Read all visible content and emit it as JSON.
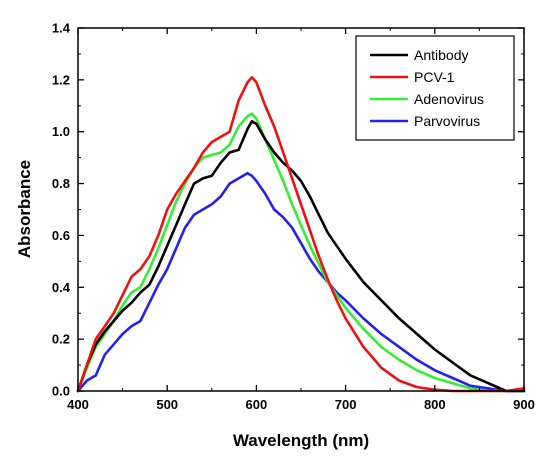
{
  "chart_data": {
    "type": "line",
    "title": "",
    "xlabel": "Wavelength (nm)",
    "ylabel": "Absorbance",
    "xlim": [
      400,
      900
    ],
    "ylim": [
      0.0,
      1.4
    ],
    "xticks": [
      400,
      500,
      600,
      700,
      800,
      900
    ],
    "xtick_labels": [
      "400",
      "500",
      "600",
      "700",
      "800",
      "900"
    ],
    "yticks": [
      0.0,
      0.2,
      0.4,
      0.6,
      0.8,
      1.0,
      1.2,
      1.4
    ],
    "ytick_labels": [
      "0.0",
      "0.2",
      "0.4",
      "0.6",
      "0.8",
      "1.0",
      "1.2",
      "1.4"
    ],
    "grid": false,
    "legend_position": "top-right",
    "series": [
      {
        "name": "Antibody",
        "color": "#000000",
        "x": [
          400,
          410,
          420,
          430,
          440,
          450,
          460,
          470,
          480,
          490,
          500,
          510,
          520,
          530,
          540,
          550,
          560,
          570,
          580,
          590,
          595,
          600,
          610,
          620,
          630,
          640,
          650,
          660,
          670,
          680,
          690,
          700,
          720,
          740,
          760,
          780,
          800,
          820,
          840,
          860,
          880,
          900
        ],
        "y": [
          0.0,
          0.1,
          0.18,
          0.23,
          0.27,
          0.31,
          0.34,
          0.38,
          0.41,
          0.48,
          0.56,
          0.64,
          0.72,
          0.8,
          0.82,
          0.83,
          0.88,
          0.92,
          0.93,
          1.01,
          1.04,
          1.03,
          0.97,
          0.92,
          0.88,
          0.85,
          0.81,
          0.75,
          0.68,
          0.61,
          0.56,
          0.51,
          0.42,
          0.35,
          0.28,
          0.22,
          0.16,
          0.11,
          0.06,
          0.03,
          0.0,
          0.0
        ]
      },
      {
        "name": "PCV-1",
        "color": "#ee1111",
        "x": [
          400,
          410,
          420,
          430,
          440,
          450,
          460,
          470,
          480,
          490,
          500,
          510,
          520,
          530,
          540,
          550,
          560,
          570,
          580,
          590,
          595,
          600,
          610,
          620,
          630,
          640,
          650,
          660,
          670,
          680,
          690,
          700,
          720,
          740,
          760,
          780,
          800,
          820,
          840,
          860,
          880,
          900
        ],
        "y": [
          0.0,
          0.1,
          0.2,
          0.25,
          0.3,
          0.37,
          0.44,
          0.47,
          0.52,
          0.6,
          0.7,
          0.76,
          0.81,
          0.86,
          0.92,
          0.96,
          0.98,
          1.0,
          1.12,
          1.19,
          1.21,
          1.19,
          1.1,
          1.02,
          0.92,
          0.82,
          0.72,
          0.62,
          0.52,
          0.43,
          0.35,
          0.28,
          0.17,
          0.09,
          0.04,
          0.015,
          0.005,
          0.0,
          0.0,
          0.0,
          0.0,
          0.01
        ]
      },
      {
        "name": "Adenovirus",
        "color": "#33ee33",
        "x": [
          400,
          410,
          420,
          430,
          440,
          450,
          460,
          470,
          480,
          490,
          500,
          510,
          520,
          530,
          540,
          550,
          560,
          570,
          580,
          590,
          595,
          600,
          610,
          620,
          630,
          640,
          650,
          660,
          670,
          680,
          690,
          700,
          720,
          740,
          760,
          780,
          800,
          820,
          840,
          860,
          880,
          900
        ],
        "y": [
          0.0,
          0.09,
          0.17,
          0.22,
          0.27,
          0.33,
          0.38,
          0.4,
          0.47,
          0.55,
          0.64,
          0.73,
          0.8,
          0.86,
          0.9,
          0.91,
          0.92,
          0.95,
          1.02,
          1.06,
          1.07,
          1.05,
          0.97,
          0.89,
          0.81,
          0.72,
          0.64,
          0.56,
          0.49,
          0.42,
          0.37,
          0.32,
          0.24,
          0.17,
          0.12,
          0.08,
          0.05,
          0.03,
          0.01,
          0.0,
          0.0,
          0.0
        ]
      },
      {
        "name": "Parvovirus",
        "color": "#2222ee",
        "x": [
          400,
          410,
          420,
          430,
          440,
          450,
          460,
          470,
          480,
          490,
          500,
          510,
          520,
          530,
          540,
          550,
          560,
          570,
          580,
          590,
          595,
          600,
          610,
          620,
          630,
          640,
          650,
          660,
          670,
          680,
          690,
          700,
          720,
          740,
          760,
          780,
          800,
          820,
          840,
          860,
          880,
          900
        ],
        "y": [
          0.0,
          0.04,
          0.06,
          0.14,
          0.18,
          0.22,
          0.25,
          0.27,
          0.34,
          0.41,
          0.47,
          0.55,
          0.63,
          0.68,
          0.7,
          0.72,
          0.75,
          0.8,
          0.82,
          0.84,
          0.83,
          0.81,
          0.76,
          0.7,
          0.67,
          0.63,
          0.57,
          0.51,
          0.46,
          0.42,
          0.38,
          0.35,
          0.28,
          0.22,
          0.17,
          0.12,
          0.08,
          0.05,
          0.02,
          0.01,
          0.0,
          0.0
        ]
      }
    ]
  }
}
